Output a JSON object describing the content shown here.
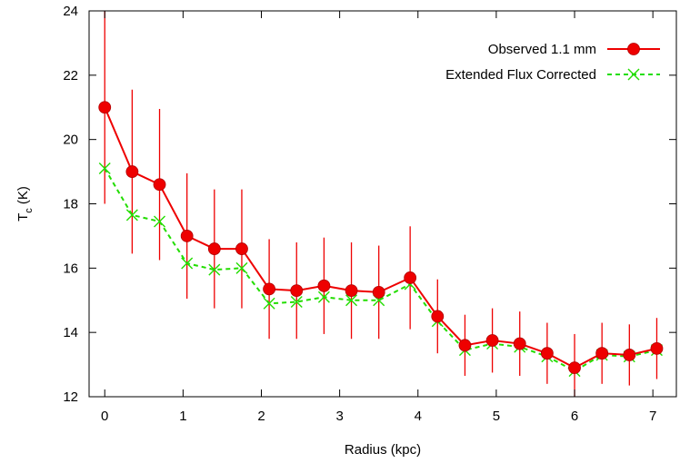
{
  "chart_data": {
    "type": "line",
    "xlabel": "Radius (kpc)",
    "ylabel": {
      "main": "T",
      "sub": "c",
      "unit": " (K)"
    },
    "xlim": [
      -0.2,
      7.3
    ],
    "ylim": [
      12,
      24
    ],
    "xticks": [
      0,
      1,
      2,
      3,
      4,
      5,
      6,
      7
    ],
    "yticks": [
      12,
      14,
      16,
      18,
      20,
      22,
      24
    ],
    "grid": false,
    "legend_position": "top-right",
    "series": [
      {
        "name": "Observed 1.1 mm",
        "color": "#ee0000",
        "line_style": "solid",
        "marker": "filled-circle",
        "x": [
          0,
          0.35,
          0.7,
          1.05,
          1.4,
          1.75,
          2.1,
          2.45,
          2.8,
          3.15,
          3.5,
          3.9,
          4.25,
          4.6,
          4.95,
          5.3,
          5.65,
          6.0,
          6.35,
          6.7,
          7.05
        ],
        "y": [
          21.0,
          19.0,
          18.6,
          17.0,
          16.6,
          16.6,
          15.35,
          15.3,
          15.45,
          15.3,
          15.25,
          15.7,
          14.5,
          13.6,
          13.75,
          13.65,
          13.35,
          12.9,
          13.35,
          13.3,
          13.5
        ],
        "y_err": [
          3.0,
          2.55,
          2.35,
          1.95,
          1.85,
          1.85,
          1.55,
          1.5,
          1.5,
          1.5,
          1.45,
          1.6,
          1.15,
          0.95,
          1.0,
          1.0,
          0.95,
          1.05,
          0.95,
          0.95,
          0.95
        ]
      },
      {
        "name": "Extended Flux Corrected",
        "color": "#22dd00",
        "line_style": "dashed",
        "marker": "x",
        "x": [
          0,
          0.35,
          0.7,
          1.05,
          1.4,
          1.75,
          2.1,
          2.45,
          2.8,
          3.15,
          3.5,
          3.9,
          4.25,
          4.6,
          4.95,
          5.3,
          5.65,
          6.0,
          6.35,
          6.7,
          7.05
        ],
        "y": [
          19.1,
          17.65,
          17.45,
          16.15,
          15.95,
          16.0,
          14.9,
          14.95,
          15.1,
          15.0,
          15.0,
          15.5,
          14.35,
          13.45,
          13.65,
          13.55,
          13.25,
          12.8,
          13.3,
          13.25,
          13.45
        ]
      }
    ]
  }
}
